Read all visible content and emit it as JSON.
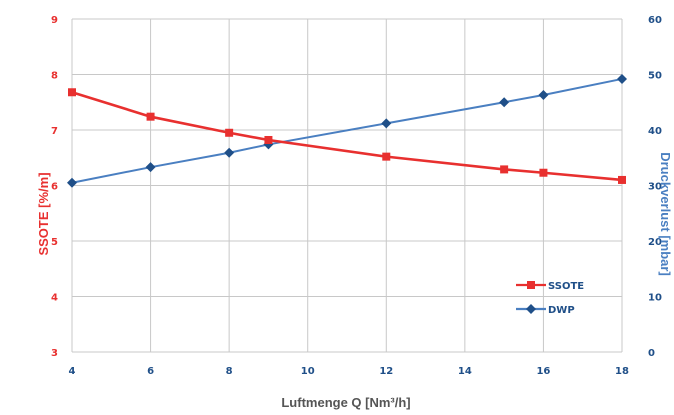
{
  "chart_data": {
    "type": "line",
    "xlabel": "Luftmenge Q [Nm³/h]",
    "ylabel_left": "SSOTE [%/m]",
    "ylabel_right": "Druckverlust [mbar]",
    "xlim": [
      4,
      18
    ],
    "ylim_left": [
      3,
      9
    ],
    "ylim_right": [
      0,
      60
    ],
    "x_ticks": [
      4,
      6,
      8,
      10,
      12,
      14,
      16,
      18
    ],
    "y_left_ticks": [
      3,
      4,
      5,
      6,
      7,
      8,
      9
    ],
    "y_right_ticks": [
      0,
      10,
      20,
      30,
      40,
      50,
      60
    ],
    "grid": true,
    "legend_position": "bottom-right",
    "series": [
      {
        "name": "SSOTE",
        "axis": "left",
        "color": "#e8302f",
        "marker": "square",
        "x": [
          4,
          6,
          8,
          9,
          12,
          15,
          16,
          18
        ],
        "y": [
          7.68,
          7.24,
          6.95,
          6.82,
          6.52,
          6.29,
          6.23,
          6.1
        ]
      },
      {
        "name": "DWP",
        "axis": "right",
        "color": "#4a7fc1",
        "marker": "diamond",
        "x": [
          4,
          6,
          8,
          9,
          12,
          15,
          16,
          18
        ],
        "y": [
          30.5,
          33.3,
          35.9,
          37.4,
          41.2,
          45.0,
          46.3,
          49.2
        ]
      }
    ]
  }
}
